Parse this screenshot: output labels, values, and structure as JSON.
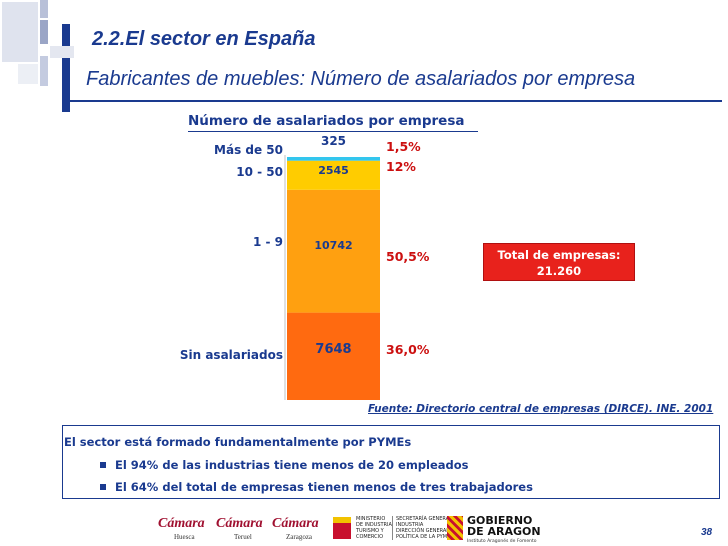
{
  "header": {
    "section_title": "2.2.El sector en España",
    "slide_title": "Fabricantes de muebles: Número de asalariados por empresa"
  },
  "chart_data": {
    "type": "bar",
    "stacked": true,
    "title": "Número de asalariados por empresa",
    "categories": [
      "Sin asalariados",
      "1 - 9",
      "10 - 50",
      "Más de 50"
    ],
    "values": [
      7648,
      10742,
      2545,
      325
    ],
    "percentages": [
      "36,0%",
      "50,5%",
      "12%",
      "1,5%"
    ],
    "colors": [
      "#ff6a10",
      "#ffa010",
      "#ffcc00",
      "#33c6ee"
    ],
    "total": 21260
  },
  "total_box": {
    "line1": "Total de empresas:",
    "line2": "21.260"
  },
  "source": "Fuente: Directorio central de empresas (DIRCE). INE. 2001",
  "summary": {
    "title": "El sector está formado fundamentalmente por PYMEs",
    "bullets": [
      "El 94% de las industrias tiene menos de 20 empleados",
      "El 64% del total de empresas tienen menos de tres trabajadores"
    ]
  },
  "footer": {
    "logos": [
      {
        "name": "Cámara",
        "sub": "Huesca"
      },
      {
        "name": "Cámara",
        "sub": "Teruel"
      },
      {
        "name": "Cámara",
        "sub": "Zaragoza"
      }
    ],
    "ministry_text": [
      "MINISTERIO",
      "DE INDUSTRIA,",
      "TURISMO Y",
      "COMERCIO"
    ],
    "secretaria_text": [
      "SECRETARÍA GENERAL DE",
      "INDUSTRIA",
      "DIRECCIÓN GENERAL DE",
      "POLÍTICA DE LA PYME"
    ],
    "gobierno_line1": "GOBIERNO",
    "gobierno_line2": "DE ARAGON",
    "gobierno_sub": "Instituto Aragonés de Fomento",
    "page_number": "38"
  }
}
